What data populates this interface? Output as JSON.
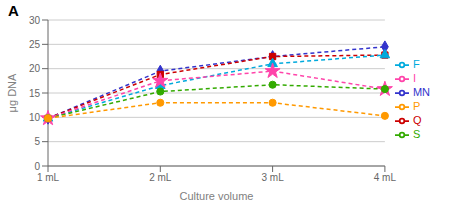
{
  "chart_data": {
    "type": "line",
    "annotations": [
      "A"
    ],
    "x_label": "Culture volume",
    "y_label": "μg DNA",
    "categories": [
      "1 mL",
      "2 mL",
      "3 mL",
      "4 mL"
    ],
    "series": [
      {
        "name": "MN",
        "color": "#3333cc",
        "marker": "diamond",
        "line_style": "dashed",
        "values": [
          9.8,
          19.5,
          22.5,
          24.5
        ]
      },
      {
        "name": "Q",
        "color": "#cc0000",
        "marker": "square",
        "line_style": "dashed",
        "values": [
          9.8,
          18.8,
          22.5,
          22.8
        ]
      },
      {
        "name": "F",
        "color": "#00aadd",
        "marker": "triangle",
        "line_style": "dashed",
        "values": [
          9.8,
          16.5,
          21.0,
          22.8
        ]
      },
      {
        "name": "I",
        "color": "#ff44aa",
        "marker": "star",
        "line_style": "dashed",
        "values": [
          9.8,
          17.5,
          19.5,
          15.8
        ]
      },
      {
        "name": "S",
        "color": "#33aa00",
        "marker": "circle",
        "line_style": "dashed",
        "values": [
          9.8,
          15.3,
          16.7,
          15.8
        ]
      },
      {
        "name": "P",
        "color": "#ff9900",
        "marker": "circle",
        "line_style": "dashed",
        "values": [
          9.8,
          13.0,
          13.0,
          10.3
        ]
      }
    ],
    "ylim": [
      0,
      30
    ],
    "yticks": [
      0,
      5,
      10,
      15,
      20,
      25,
      30
    ],
    "grid": true,
    "legend": "right"
  }
}
